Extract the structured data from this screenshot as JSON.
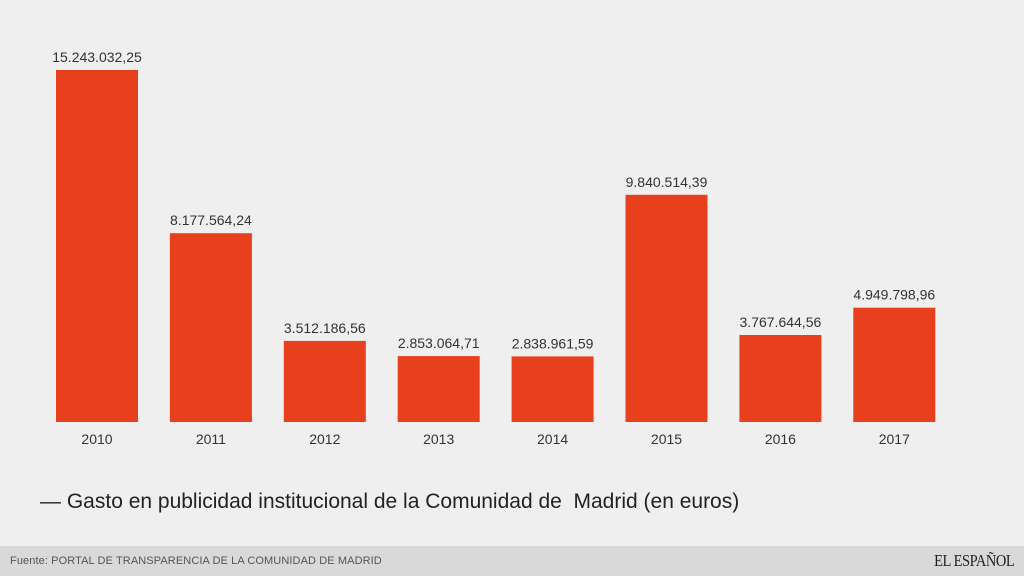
{
  "chart_data": {
    "type": "bar",
    "categories": [
      "2010",
      "2011",
      "2012",
      "2013",
      "2014",
      "2015",
      "2016",
      "2017"
    ],
    "values": [
      15243032.25,
      8177564.24,
      3512186.56,
      2853064.71,
      2838961.59,
      9840514.39,
      3767644.56,
      4949798.96
    ],
    "value_labels": [
      "15.243.032,25",
      "8.177.564,24",
      "3.512.186,56",
      "2.853.064,71",
      "2.838.961,59",
      "9.840.514,39",
      "3.767.644,56",
      "4.949.798,96"
    ],
    "title": "",
    "xlabel": "",
    "ylabel": "",
    "ylim": [
      0,
      15243032.25
    ],
    "grid": false,
    "legend": "bottom",
    "series_name": "Gasto en publicidad institucional de la Comunidad de  Madrid (en euros)",
    "bar_color": "#e8401c"
  },
  "legend": {
    "marker": "—",
    "label": "Gasto en publicidad institucional de la Comunidad de  Madrid (en euros)"
  },
  "footer": {
    "source_prefix": "Fuente:",
    "source_text": "PORTAL DE TRANSPARENCIA DE LA COMUNIDAD DE MADRID",
    "brand": "EL ESPAÑOL"
  }
}
